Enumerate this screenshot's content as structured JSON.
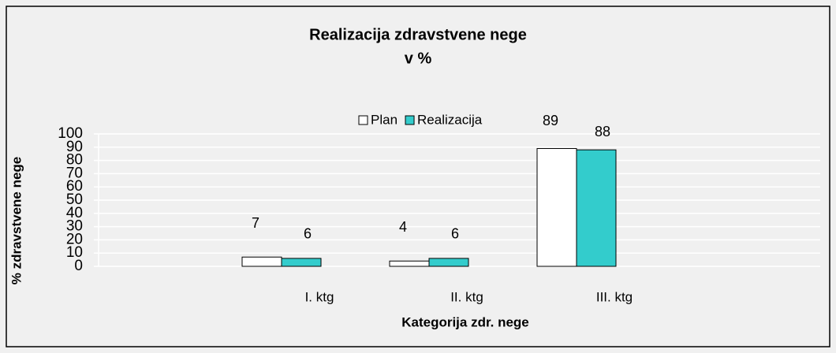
{
  "chart_data": {
    "type": "bar",
    "title": "Realizacija zdravstvene  nege",
    "subtitle": "v %",
    "categories": [
      "I. ktg",
      "II. ktg",
      "III. ktg"
    ],
    "series": [
      {
        "name": "Plan",
        "color": "#ffffff",
        "values": [
          7,
          4,
          89
        ]
      },
      {
        "name": "Realizacija",
        "color": "#33cccc",
        "values": [
          6,
          6,
          88
        ]
      }
    ],
    "xlabel": "Kategorija zdr. nege",
    "ylabel": "% zdravstvene nege",
    "ylim": [
      0,
      100
    ],
    "yticks": [
      0,
      10,
      20,
      30,
      40,
      50,
      60,
      70,
      80,
      90,
      100
    ],
    "grid": true,
    "legend": "top"
  }
}
